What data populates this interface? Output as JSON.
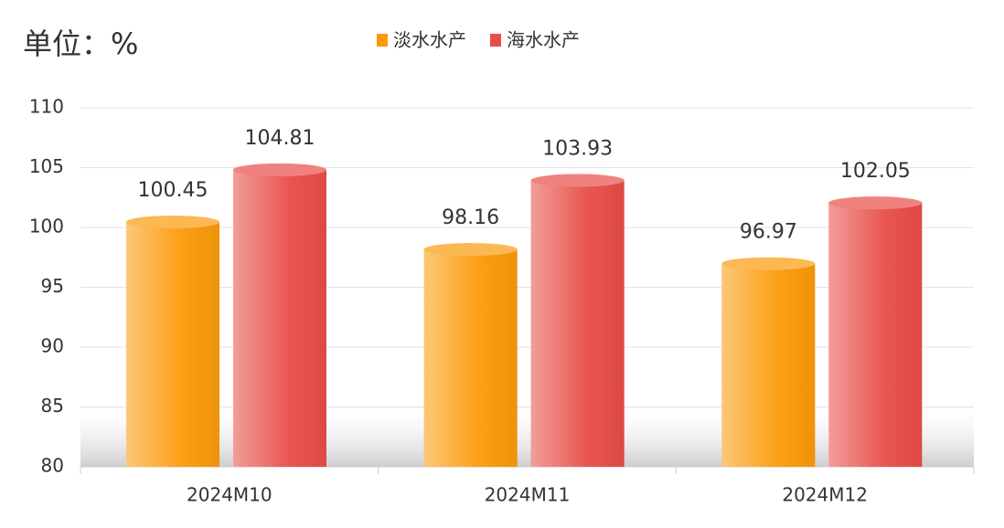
{
  "chart_data": {
    "type": "bar",
    "title": "单位：%",
    "categories": [
      "2024M10",
      "2024M11",
      "2024M12"
    ],
    "series": [
      {
        "name": "淡水水产",
        "color": "#fb9a08",
        "values": [
          100.45,
          98.16,
          96.97
        ]
      },
      {
        "name": "海水水产",
        "color": "#e84d47",
        "values": [
          104.81,
          103.93,
          102.05
        ]
      }
    ],
    "ylim": [
      80,
      110
    ],
    "yticks": [
      80,
      85,
      90,
      95,
      100,
      105,
      110
    ],
    "grid": true,
    "legend": "top"
  }
}
